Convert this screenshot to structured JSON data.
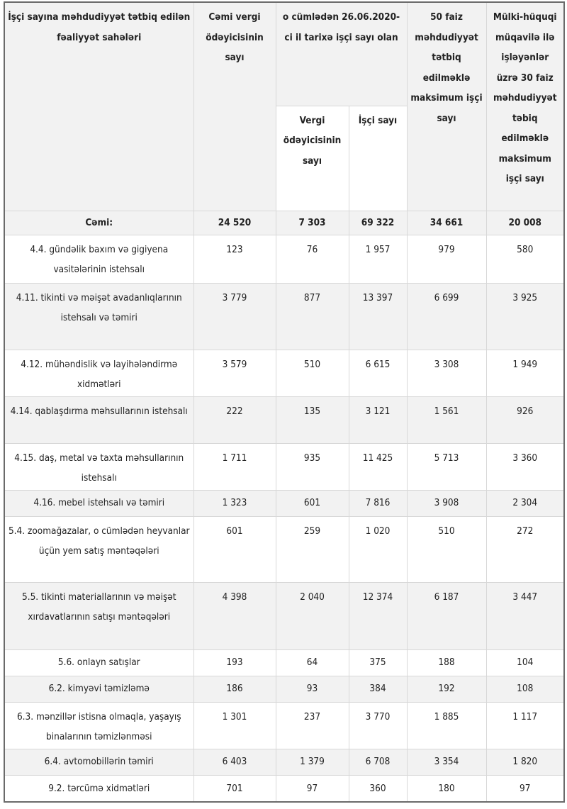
{
  "headers": {
    "activity": "İşçi sayına məhdudiyyət tətbiq edilən fəaliyyət sahələri",
    "total_taxpayers": "Cəmi vergi ödəyicisinin sayı",
    "of_which": "o cümlədən 26.06.2020-ci il tarixə işçi sayı olan",
    "sub_taxpayers": "Vergi ödəyicisinin sayı",
    "sub_workers": "İşçi sayı",
    "max_50": "50 faiz məhdudiyyət tətbiq edilməklə maksimum işçi sayı",
    "max_30": "Mülki-hüquqi müqavilə ilə işləyənlər üzrə 30 faiz məhdudiyyət təbiq edilməklə maksimum işçi sayı"
  },
  "total_row": [
    "Cəmi:",
    "24 520",
    "7 303",
    "69 322",
    "34 661",
    "20 008"
  ],
  "rows": [
    [
      "4.4. gündəlik baxım və gigiyena vasitələrinin istehsalı",
      "123",
      "76",
      "1 957",
      "979",
      "580"
    ],
    [
      "4.11. tikinti və məişət avadanlıqlarının istehsalı və təmiri",
      "3 779",
      "877",
      "13 397",
      "6 699",
      "3 925"
    ],
    [
      "4.12. mühəndislik və layihələndirmə xidmətləri",
      "3 579",
      "510",
      "6 615",
      "3 308",
      "1 949"
    ],
    [
      "4.14. qablaşdırma məhsullarının istehsalı",
      "222",
      "135",
      "3 121",
      "1 561",
      "926"
    ],
    [
      "4.15. daş, metal və taxta məhsullarının istehsalı",
      "1 711",
      "935",
      "11 425",
      "5 713",
      "3 360"
    ],
    [
      "4.16. mebel istehsalı və təmiri",
      "1 323",
      "601",
      "7 816",
      "3 908",
      "2 304"
    ],
    [
      "5.4. zoomağazalar, o cümlədən heyvanlar üçün yem satış məntəqələri",
      "601",
      "259",
      "1 020",
      "510",
      "272"
    ],
    [
      "5.5. tikinti materiallarının və məişət xırdavatlarının satışı məntəqələri",
      "4 398",
      "2 040",
      "12 374",
      "6 187",
      "3 447"
    ],
    [
      "5.6. onlayn satışlar",
      "193",
      "64",
      "375",
      "188",
      "104"
    ],
    [
      "6.2. kimyəvi təmizləmə",
      "186",
      "93",
      "384",
      "192",
      "108"
    ],
    [
      "6.3. mənzillər istisna olmaqla, yaşayış binalarının təmizlənməsi",
      "1 301",
      "237",
      "3 770",
      "1 885",
      "1 117"
    ],
    [
      "6.4. avtomobillərin təmiri",
      "6 403",
      "1 379",
      "6 708",
      "3 354",
      "1 820"
    ],
    [
      "9.2. tərcümə xidmətləri",
      "701",
      "97",
      "360",
      "180",
      "97"
    ]
  ]
}
